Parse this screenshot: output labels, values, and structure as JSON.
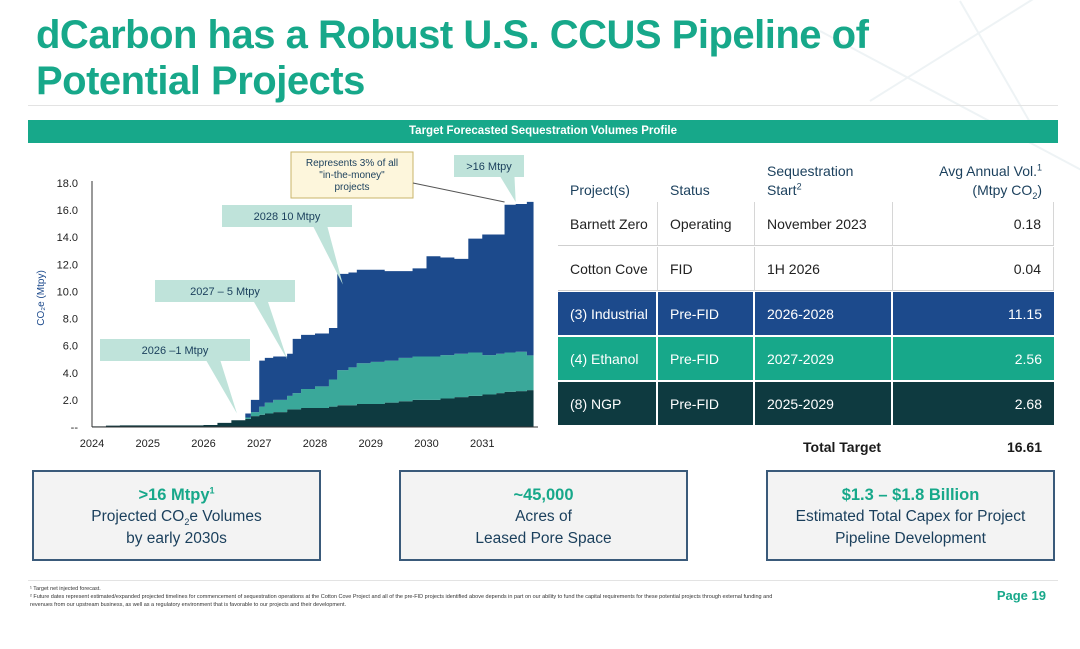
{
  "title": {
    "line1": "dCarbon has a Robust U.S. CCUS Pipeline of",
    "line2": "Potential Projects"
  },
  "banner": "Target Forecasted Sequestration Volumes Profile",
  "chart_data": {
    "type": "area",
    "stacked": true,
    "ylabel": "CO₂e (Mtpy)",
    "ylim": [
      0,
      18
    ],
    "yticks": [
      "--",
      "2.0",
      "4.0",
      "6.0",
      "8.0",
      "10.0",
      "12.0",
      "14.0",
      "16.0",
      "18.0"
    ],
    "xlim": [
      2024,
      2032
    ],
    "xticks": [
      "2024",
      "2025",
      "2026",
      "2027",
      "2028",
      "2029",
      "2030",
      "2031"
    ],
    "x": [
      2024.0,
      2024.25,
      2024.5,
      2024.75,
      2025.0,
      2025.5,
      2025.75,
      2026.0,
      2026.25,
      2026.5,
      2026.75,
      2026.85,
      2027.0,
      2027.1,
      2027.25,
      2027.5,
      2027.6,
      2027.75,
      2028.0,
      2028.25,
      2028.4,
      2028.6,
      2028.75,
      2029.0,
      2029.25,
      2029.5,
      2029.75,
      2030.0,
      2030.25,
      2030.5,
      2030.75,
      2031.0,
      2031.25,
      2031.4,
      2031.6,
      2031.8
    ],
    "series": [
      {
        "color": "#0e3a40",
        "values": [
          0.05,
          0.1,
          0.12,
          0.12,
          0.12,
          0.12,
          0.12,
          0.15,
          0.3,
          0.5,
          0.6,
          0.8,
          0.9,
          1.0,
          1.1,
          1.3,
          1.3,
          1.4,
          1.4,
          1.5,
          1.6,
          1.6,
          1.7,
          1.7,
          1.8,
          1.9,
          2.0,
          2.0,
          2.1,
          2.2,
          2.3,
          2.4,
          2.5,
          2.6,
          2.65,
          2.72
        ]
      },
      {
        "color": "#3aa89a",
        "values": [
          0,
          0,
          0,
          0,
          0,
          0,
          0,
          0,
          0,
          0,
          0.1,
          0.3,
          0.6,
          0.8,
          0.9,
          1.0,
          1.2,
          1.4,
          1.6,
          2.0,
          2.6,
          2.8,
          3.0,
          3.1,
          3.1,
          3.2,
          3.2,
          3.2,
          3.2,
          3.2,
          3.2,
          2.9,
          2.9,
          2.9,
          2.9,
          2.56
        ]
      },
      {
        "color": "#1c4a8c",
        "values": [
          0,
          0,
          0,
          0,
          0,
          0,
          0,
          0,
          0,
          0,
          0.3,
          0.9,
          3.4,
          3.3,
          3.2,
          3.1,
          4.0,
          4.0,
          3.9,
          3.8,
          7.1,
          7.0,
          6.9,
          6.8,
          6.6,
          6.4,
          6.5,
          7.4,
          7.2,
          7.0,
          8.4,
          8.9,
          8.8,
          10.9,
          10.9,
          11.33
        ]
      }
    ],
    "annotations": [
      {
        "text": "2026 –1 Mtpy",
        "x": 2026.6,
        "y": 1.0
      },
      {
        "text": "2027 – 5 Mtpy",
        "x": 2027.5,
        "y": 5.0
      },
      {
        "text": "2028 10 Mtpy",
        "x": 2028.5,
        "y": 10.5
      },
      {
        "text": ">16 Mtpy",
        "x": 2031.6,
        "y": 16.6
      },
      {
        "lines": [
          "Represents 3% of all",
          "\"in-the-money\"",
          "projects"
        ],
        "x": 2031.4,
        "y": 16.6
      }
    ]
  },
  "table": {
    "headers": {
      "project": "Project(s)",
      "status": "Status",
      "start_line1": "Sequestration",
      "start_line2": "Start",
      "start_sup": "2",
      "vol_line1": "Avg Annual Vol.",
      "vol_sup": "1",
      "vol_line2_pre": "(Mtpy CO",
      "vol_line2_sub": "2",
      "vol_line2_post": ")"
    },
    "rows": [
      {
        "project": "Barnett Zero",
        "status": "Operating",
        "start": "November 2023",
        "vol": "0.18"
      },
      {
        "project": "Cotton Cove",
        "status": "FID",
        "start": "1H 2026",
        "vol": "0.04"
      },
      {
        "project": "(3) Industrial",
        "status": "Pre-FID",
        "start": "2026-2028",
        "vol": "11.15"
      },
      {
        "project": "(4) Ethanol",
        "status": "Pre-FID",
        "start": "2027-2029",
        "vol": "2.56"
      },
      {
        "project": "(8) NGP",
        "status": "Pre-FID",
        "start": "2025-2029",
        "vol": "2.68"
      }
    ],
    "total_label": "Total Target",
    "total_value": "16.61"
  },
  "kpis": [
    {
      "head": ">16 Mtpy",
      "head_sup": "1",
      "line1_pre": "Projected CO",
      "line1_sub": "2",
      "line1_post": "e Volumes",
      "line2": "by early 2030s"
    },
    {
      "head": "~45,000",
      "line1": "Acres of",
      "line2": "Leased Pore Space"
    },
    {
      "head": "$1.3 – $1.8 Billion",
      "line1": "Estimated Total Capex for Project",
      "line2": "Pipeline Development"
    }
  ],
  "footnotes": {
    "note1": "¹ Target net injected forecast.",
    "note2": "² Future dates represent estimated/expanded projected timelines for commencement of sequestration operations at the Cotton Cove Project and all of the pre-FID projects identified above depends in part on our ability to fund the capital requirements for these potential projects through external funding and",
    "note3": "revenues from our upstream business, as well as a regulatory environment that is favorable to our projects and their development."
  },
  "page": "Page 19",
  "colors": {
    "brand_teal": "#17a88a",
    "industrial_blue": "#1c4a8c",
    "ethanol_teal": "#3aa89a",
    "ngp_dark": "#0e3a40",
    "callout": "#bfe3da"
  }
}
